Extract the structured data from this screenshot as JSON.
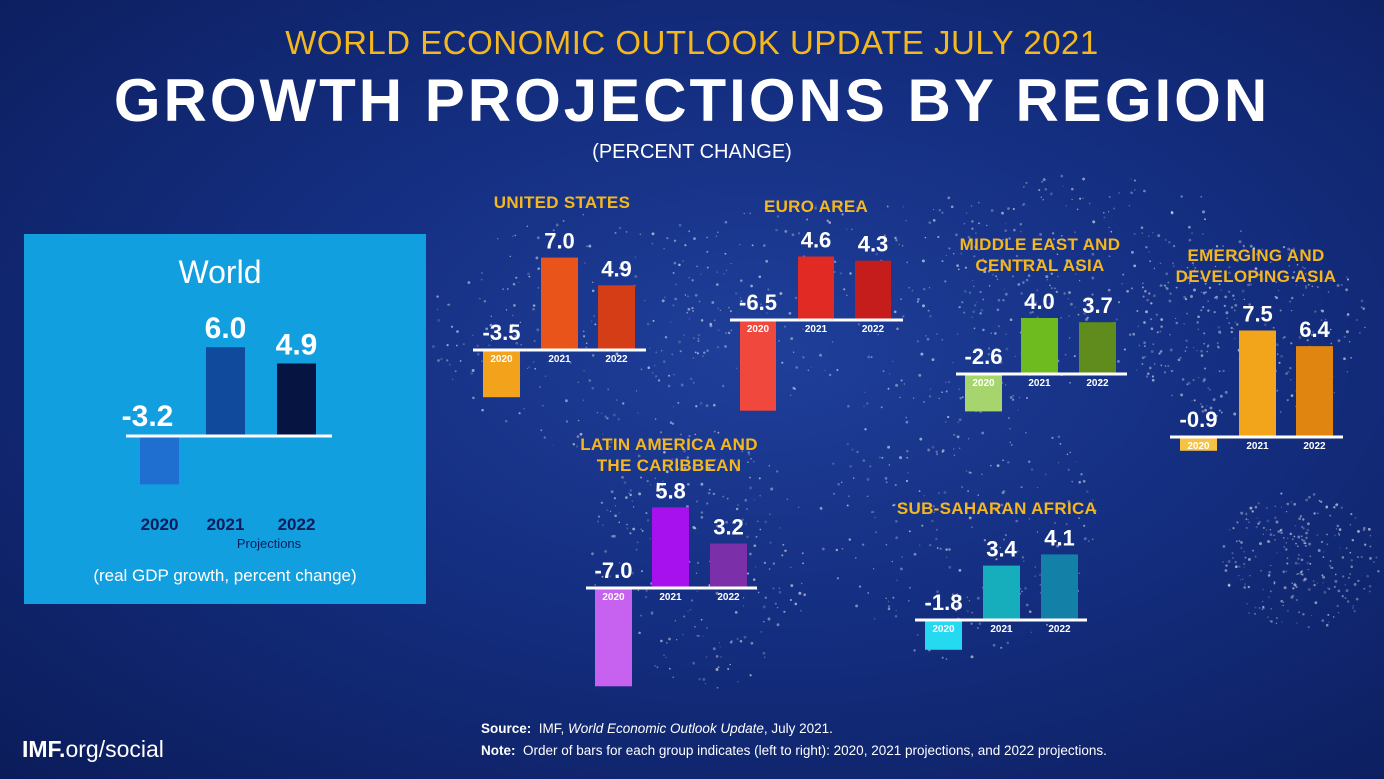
{
  "header": {
    "supertitle": "WORLD ECONOMIC OUTLOOK UPDATE JULY 2021",
    "title": "GROWTH PROJECTIONS BY REGION",
    "subtitle": "(PERCENT CHANGE)"
  },
  "world_panel": {
    "title": "World",
    "projections_label": "Projections",
    "caption": "(real GDP growth, percent change)"
  },
  "colors": {
    "background": "#142e80",
    "accent": "#f5b71e",
    "world_panel": "#129fdf"
  },
  "chart_data": [
    {
      "type": "bar",
      "id": "world",
      "title": "World",
      "categories": [
        "2020",
        "2021",
        "2022"
      ],
      "values": [
        -3.2,
        6.0,
        4.9
      ],
      "value_labels": [
        "-3.2",
        "6.0",
        "4.9"
      ],
      "colors": [
        "#1f6fd0",
        "#0f4a9c",
        "#061441"
      ]
    },
    {
      "type": "bar",
      "id": "us",
      "title": "UNITED STATES",
      "categories": [
        "2020",
        "2021",
        "2022"
      ],
      "values": [
        -3.5,
        7.0,
        4.9
      ],
      "value_labels": [
        "-3.5",
        "7.0",
        "4.9"
      ],
      "colors": [
        "#f2a31b",
        "#e8541a",
        "#d43d15"
      ]
    },
    {
      "type": "bar",
      "id": "euro",
      "title": "EURO AREA",
      "categories": [
        "2020",
        "2021",
        "2022"
      ],
      "values": [
        -6.5,
        4.6,
        4.3
      ],
      "value_labels": [
        "-6.5",
        "4.6",
        "4.3"
      ],
      "colors": [
        "#f0483c",
        "#e02a23",
        "#c41d1c"
      ]
    },
    {
      "type": "bar",
      "id": "meca",
      "title": "MIDDLE EAST AND CENTRAL ASIA",
      "categories": [
        "2020",
        "2021",
        "2022"
      ],
      "values": [
        -2.6,
        4.0,
        3.7
      ],
      "value_labels": [
        "-2.6",
        "4.0",
        "3.7"
      ],
      "colors": [
        "#a6d56d",
        "#6dbb1f",
        "#5f8c1d"
      ]
    },
    {
      "type": "bar",
      "id": "eda",
      "title": "EMERGING AND DEVELOPING ASIA",
      "categories": [
        "2020",
        "2021",
        "2022"
      ],
      "values": [
        -0.9,
        7.5,
        6.4
      ],
      "value_labels": [
        "-0.9",
        "7.5",
        "6.4"
      ],
      "colors": [
        "#f5c244",
        "#f2a51a",
        "#df8510"
      ]
    },
    {
      "type": "bar",
      "id": "lac",
      "title": "LATIN AMERICA AND THE CARIBBEAN",
      "categories": [
        "2020",
        "2021",
        "2022"
      ],
      "values": [
        -7.0,
        5.8,
        3.2
      ],
      "value_labels": [
        "-7.0",
        "5.8",
        "3.2"
      ],
      "colors": [
        "#c762f0",
        "#a611ee",
        "#7b2fa8"
      ]
    },
    {
      "type": "bar",
      "id": "ssa",
      "title": "SUB-SAHARAN AFRICA",
      "categories": [
        "2020",
        "2021",
        "2022"
      ],
      "values": [
        -1.8,
        3.4,
        4.1
      ],
      "value_labels": [
        "-1.8",
        "3.4",
        "4.1"
      ],
      "colors": [
        "#25d9f0",
        "#16aebc",
        "#1380a8"
      ]
    }
  ],
  "footer": {
    "logo_bold": "IMF.",
    "logo_rest": "org/social",
    "source_label": "Source:",
    "source_text": "IMF, ",
    "source_italic": "World Economic Outlook Update",
    "source_end": ", July 2021.",
    "note_label": "Note:",
    "note_text": "Order of bars for each group indicates (left to right): 2020, 2021 projections, and 2022 projections."
  }
}
